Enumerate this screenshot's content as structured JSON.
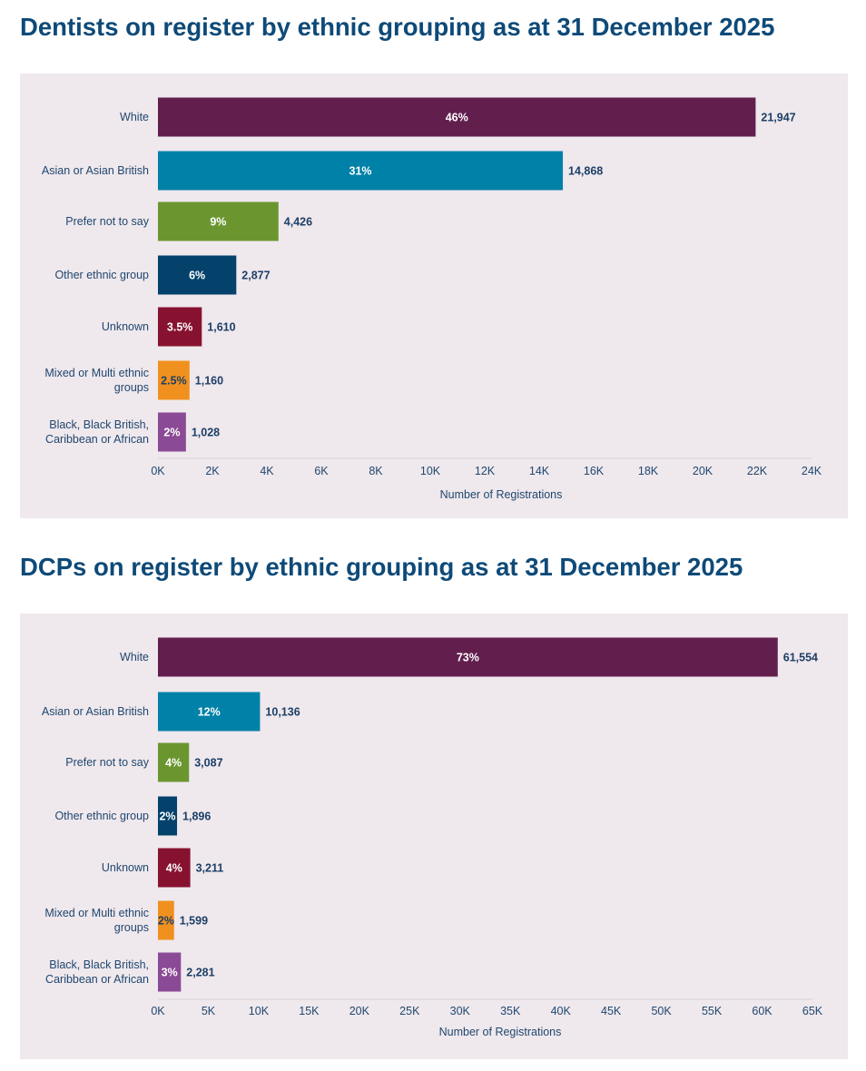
{
  "colors": {
    "title": "#0e4a78",
    "panel": "#efe8ed",
    "text": "#20486f",
    "bars": [
      "#621f4e",
      "#0081a8",
      "#6b962f",
      "#04426c",
      "#871230",
      "#f0901f",
      "#8b4a96"
    ]
  },
  "chart_data": [
    {
      "type": "bar",
      "orientation": "horizontal",
      "title": "Dentists on register by ethnic grouping as at 31 December 2025",
      "xlabel": "Number of Registrations",
      "categories": [
        "White",
        "Asian or Asian British",
        "Prefer not to say",
        "Other ethnic group",
        "Unknown",
        "Mixed or Multi ethnic groups",
        "Black, Black British, Caribbean or African"
      ],
      "values": [
        21947,
        14868,
        4426,
        2877,
        1610,
        1160,
        1028
      ],
      "value_labels": [
        "21,947",
        "14,868",
        "4,426",
        "2,877",
        "1,610",
        "1,160",
        "1,028"
      ],
      "percent_labels": [
        "46%",
        "31%",
        "9%",
        "6%",
        "3.5%",
        "2.5%",
        "2%"
      ],
      "xlim": [
        0,
        24000
      ],
      "ticks": [
        0,
        2000,
        4000,
        6000,
        8000,
        10000,
        12000,
        14000,
        16000,
        18000,
        20000,
        22000,
        24000
      ],
      "tick_labels": [
        "0K",
        "2K",
        "4K",
        "6K",
        "8K",
        "10K",
        "12K",
        "14K",
        "16K",
        "18K",
        "20K",
        "22K",
        "24K"
      ],
      "grid": false,
      "legend": "none"
    },
    {
      "type": "bar",
      "orientation": "horizontal",
      "title": "DCPs on register by ethnic grouping as at 31 December 2025",
      "xlabel": "Number of Registrations",
      "categories": [
        "White",
        "Asian or Asian British",
        "Prefer not to say",
        "Other ethnic group",
        "Unknown",
        "Mixed or Multi ethnic groups",
        "Black, Black British, Caribbean or African"
      ],
      "values": [
        61554,
        10136,
        3087,
        1896,
        3211,
        1599,
        2281
      ],
      "value_labels": [
        "61,554",
        "10,136",
        "3,087",
        "1,896",
        "3,211",
        "1,599",
        "2,281"
      ],
      "percent_labels": [
        "73%",
        "12%",
        "4%",
        "2%",
        "4%",
        "2%",
        "3%"
      ],
      "xlim": [
        0,
        65000
      ],
      "ticks": [
        0,
        5000,
        10000,
        15000,
        20000,
        25000,
        30000,
        35000,
        40000,
        45000,
        50000,
        55000,
        60000,
        65000
      ],
      "tick_labels": [
        "0K",
        "5K",
        "10K",
        "15K",
        "20K",
        "25K",
        "30K",
        "35K",
        "40K",
        "45K",
        "50K",
        "55K",
        "60K",
        "65K"
      ],
      "grid": false,
      "legend": "none"
    }
  ]
}
